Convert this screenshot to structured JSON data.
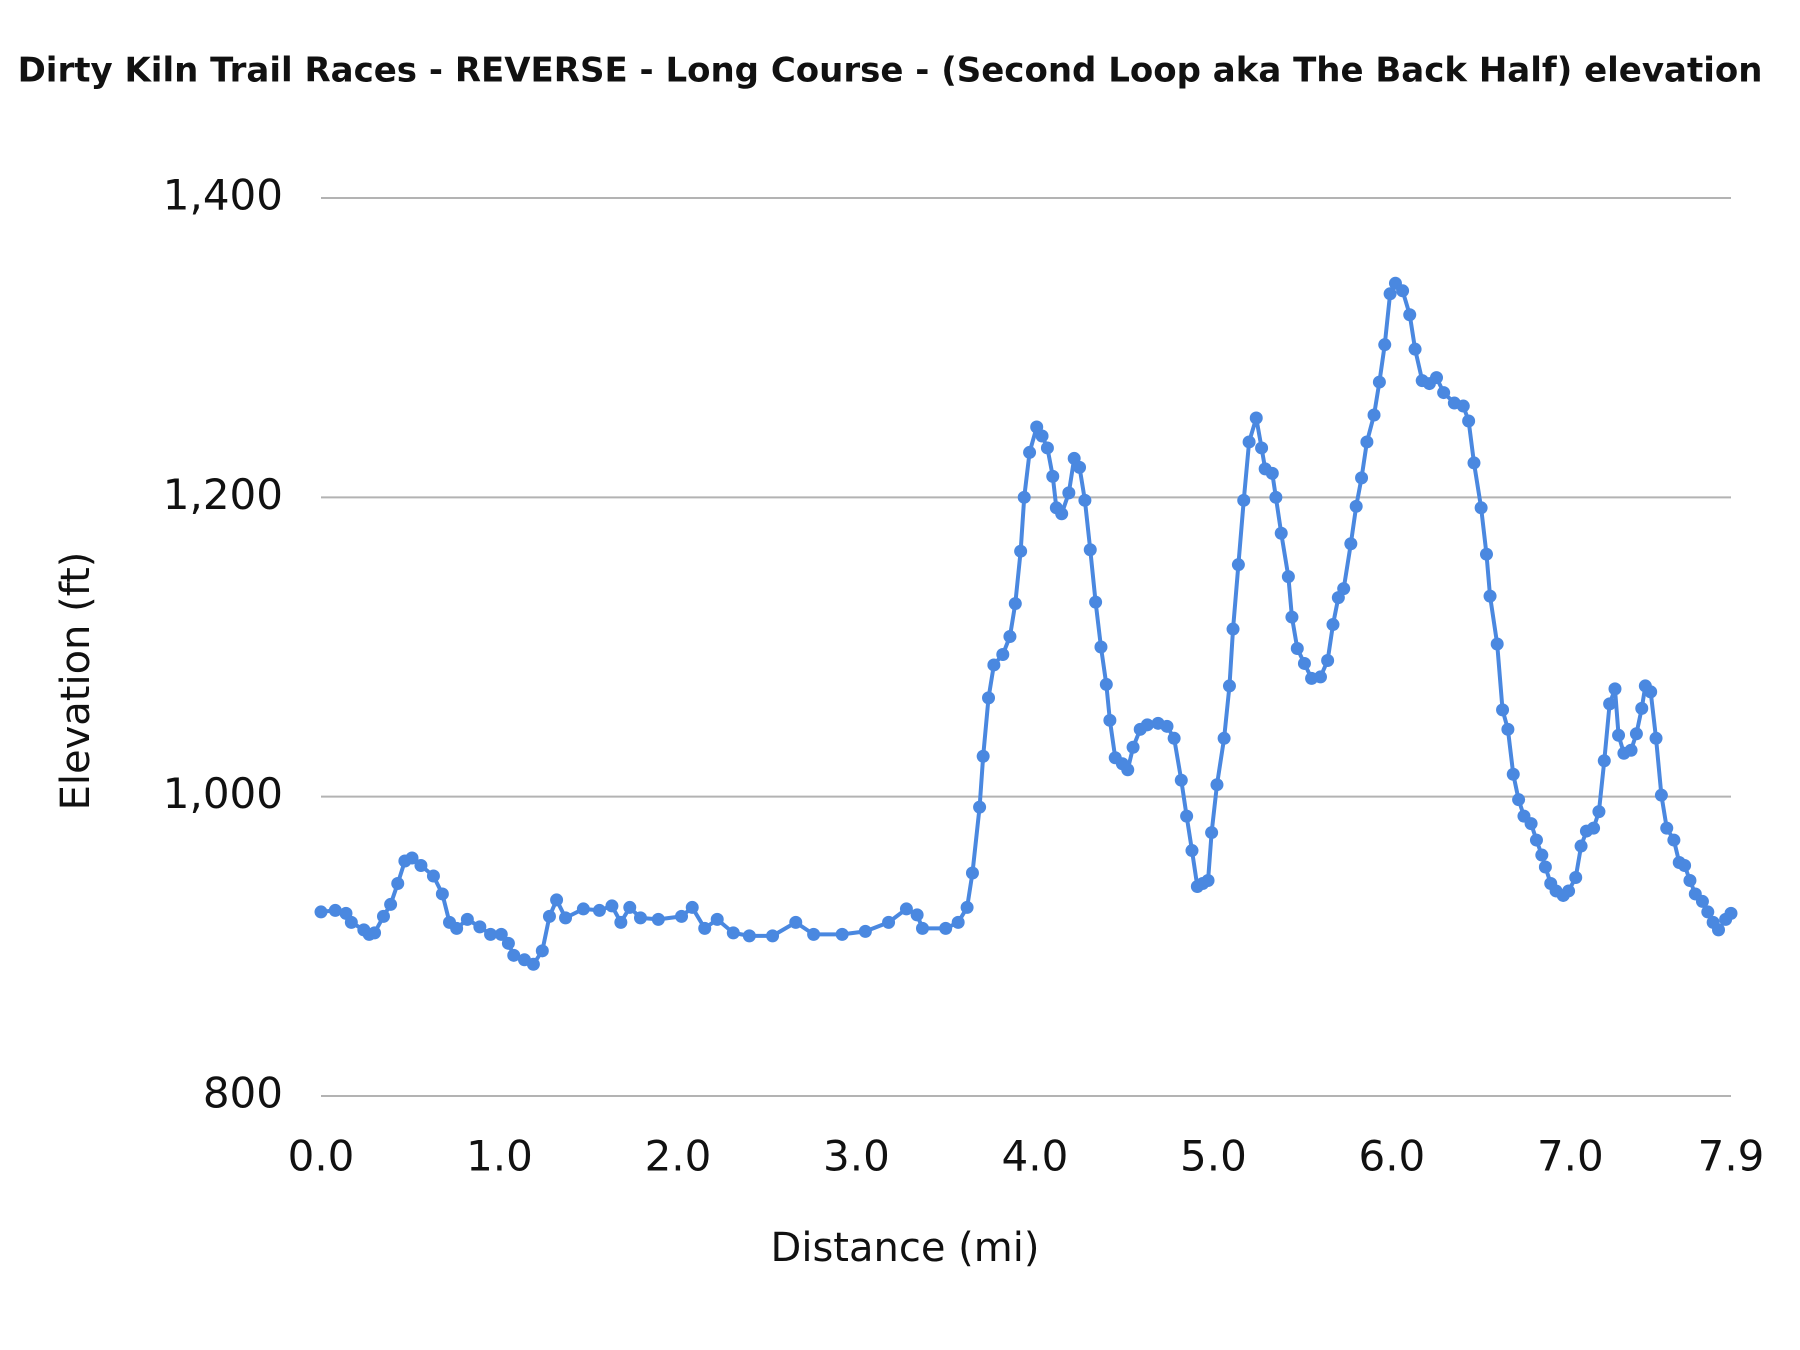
{
  "chart_data": {
    "type": "line",
    "title": "Dirty Kiln Trail Races - REVERSE - Long Course - (Second Loop aka The Back Half) elevation",
    "x_label": "Distance (mi)",
    "y_label": "Elevation (ft)",
    "color": "#4a88e0",
    "grid": true,
    "xlim": [
      0,
      7.9
    ],
    "ylim": [
      800,
      1400
    ],
    "xticks": [
      {
        "value": 0,
        "label": "0.0"
      },
      {
        "value": 1,
        "label": "1.0"
      },
      {
        "value": 2,
        "label": "2.0"
      },
      {
        "value": 3,
        "label": "3.0"
      },
      {
        "value": 4,
        "label": "4.0"
      },
      {
        "value": 5,
        "label": "5.0"
      },
      {
        "value": 6,
        "label": "6.0"
      },
      {
        "value": 7,
        "label": "7.0"
      },
      {
        "value": 7.9,
        "label": "7.9"
      }
    ],
    "yticks": [
      800,
      {
        "value": 1000,
        "label": "1,000"
      },
      {
        "value": 1200,
        "label": "1,200"
      },
      {
        "value": 1400,
        "label": "1,400"
      }
    ],
    "x": [
      0,
      0.08,
      0.14,
      0.17,
      0.24,
      0.27,
      0.3,
      0.35,
      0.39,
      0.43,
      0.47,
      0.51,
      0.56,
      0.63,
      0.68,
      0.72,
      0.76,
      0.82,
      0.89,
      0.95,
      1.01,
      1.05,
      1.08,
      1.14,
      1.19,
      1.24,
      1.28,
      1.32,
      1.37,
      1.47,
      1.56,
      1.63,
      1.68,
      1.73,
      1.79,
      1.89,
      2.02,
      2.08,
      2.15,
      2.22,
      2.31,
      2.4,
      2.53,
      2.66,
      2.76,
      2.92,
      3.05,
      3.18,
      3.28,
      3.34,
      3.37,
      3.5,
      3.57,
      3.62,
      3.65,
      3.69,
      3.71,
      3.74,
      3.77,
      3.82,
      3.86,
      3.89,
      3.92,
      3.94,
      3.97,
      4.01,
      4.04,
      4.07,
      4.1,
      4.12,
      4.15,
      4.19,
      4.22,
      4.25,
      4.28,
      4.31,
      4.34,
      4.37,
      4.4,
      4.42,
      4.45,
      4.49,
      4.52,
      4.55,
      4.59,
      4.63,
      4.69,
      4.74,
      4.78,
      4.82,
      4.85,
      4.88,
      4.91,
      4.94,
      4.97,
      4.99,
      5.02,
      5.06,
      5.09,
      5.11,
      5.14,
      5.17,
      5.2,
      5.24,
      5.27,
      5.29,
      5.33,
      5.35,
      5.38,
      5.42,
      5.44,
      5.47,
      5.51,
      5.55,
      5.6,
      5.64,
      5.67,
      5.7,
      5.73,
      5.77,
      5.8,
      5.83,
      5.86,
      5.9,
      5.93,
      5.96,
      5.99,
      6.02,
      6.06,
      6.1,
      6.13,
      6.17,
      6.21,
      6.25,
      6.29,
      6.35,
      6.4,
      6.43,
      6.46,
      6.5,
      6.53,
      6.55,
      6.59,
      6.62,
      6.65,
      6.68,
      6.71,
      6.74,
      6.78,
      6.81,
      6.84,
      6.86,
      6.89,
      6.92,
      6.96,
      6.99,
      7.03,
      7.06,
      7.09,
      7.13,
      7.16,
      7.19,
      7.22,
      7.25,
      7.27,
      7.3,
      7.34,
      7.37,
      7.4,
      7.42,
      7.45,
      7.48,
      7.51,
      7.54,
      7.58,
      7.61,
      7.64,
      7.67,
      7.7,
      7.74,
      7.77,
      7.8,
      7.83,
      7.87,
      7.9
    ],
    "values": [
      923,
      924,
      922,
      916,
      911,
      908,
      909,
      920,
      928,
      942,
      957,
      959,
      954,
      947,
      935,
      916,
      912,
      918,
      913,
      908,
      908,
      902,
      894,
      891,
      888,
      897,
      920,
      931,
      919,
      925,
      924,
      927,
      916,
      926,
      919,
      918,
      920,
      926,
      912,
      918,
      909,
      907,
      907,
      916,
      908,
      908,
      910,
      916,
      925,
      921,
      912,
      912,
      916,
      926,
      949,
      993,
      1027,
      1066,
      1088,
      1095,
      1107,
      1129,
      1164,
      1200,
      1230,
      1247,
      1241,
      1233,
      1214,
      1193,
      1189,
      1203,
      1226,
      1220,
      1198,
      1165,
      1130,
      1100,
      1075,
      1051,
      1026,
      1022,
      1018,
      1033,
      1045,
      1048,
      1049,
      1047,
      1039,
      1011,
      987,
      964,
      940,
      942,
      944,
      976,
      1008,
      1039,
      1074,
      1112,
      1155,
      1198,
      1237,
      1253,
      1233,
      1219,
      1216,
      1200,
      1176,
      1147,
      1120,
      1099,
      1089,
      1079,
      1080,
      1091,
      1115,
      1133,
      1139,
      1169,
      1194,
      1213,
      1237,
      1255,
      1277,
      1302,
      1336,
      1343,
      1338,
      1322,
      1299,
      1278,
      1276,
      1280,
      1270,
      1263,
      1261,
      1251,
      1223,
      1193,
      1162,
      1134,
      1102,
      1058,
      1045,
      1015,
      998,
      987,
      982,
      971,
      961,
      953,
      942,
      937,
      934,
      937,
      946,
      967,
      977,
      979,
      990,
      1024,
      1062,
      1072,
      1041,
      1029,
      1031,
      1042,
      1059,
      1074,
      1070,
      1039,
      1001,
      979,
      971,
      956,
      954,
      944,
      935,
      930,
      923,
      916,
      911,
      918,
      922
    ]
  }
}
